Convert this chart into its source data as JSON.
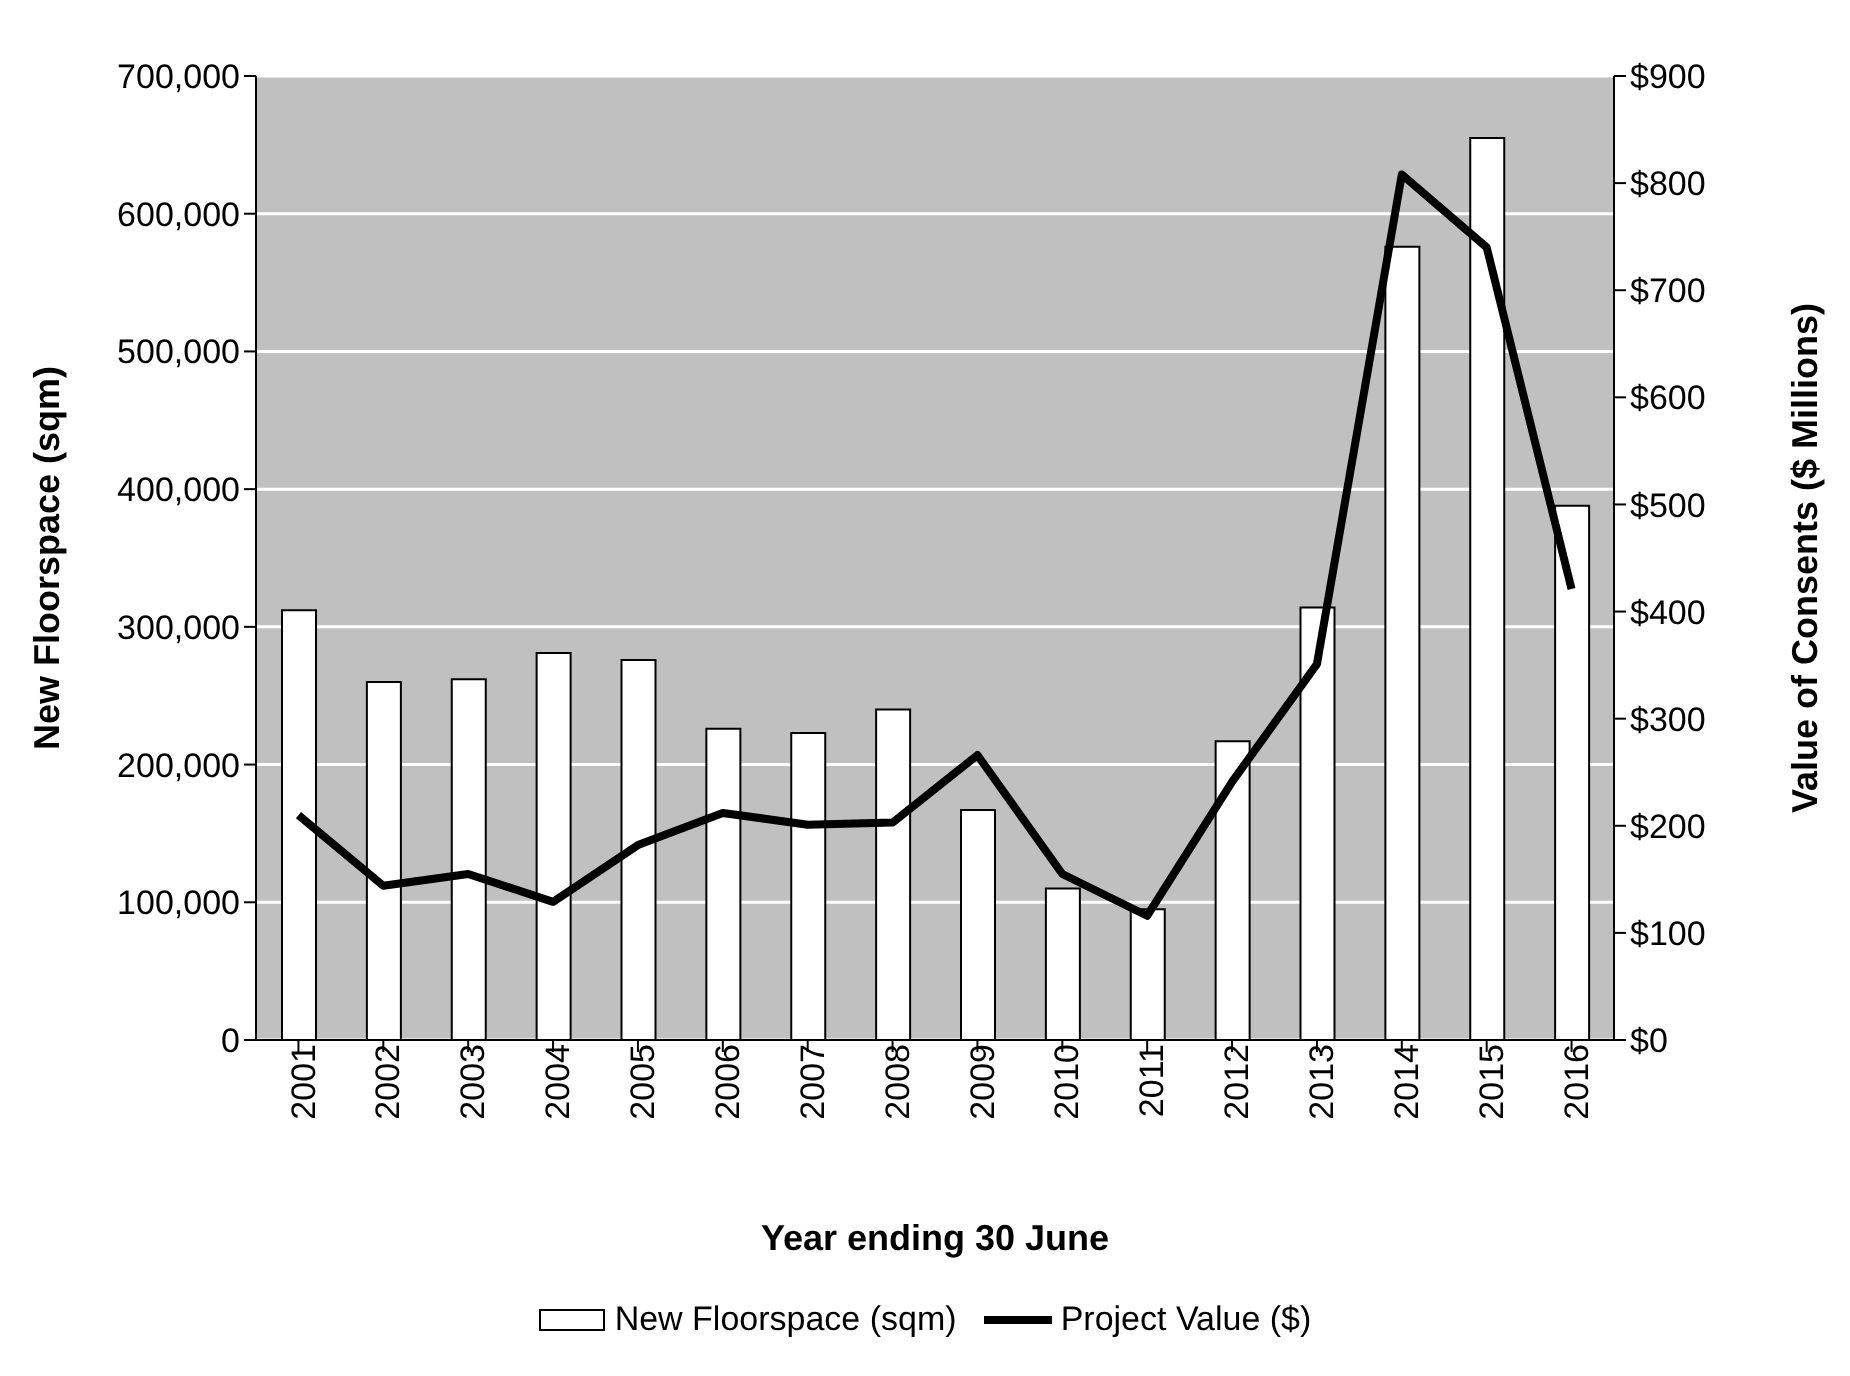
{
  "chart_data": {
    "type": "bar",
    "xlabel": "Year ending 30 June",
    "ylabel": "New Floorspace (sqm)",
    "y2label": "Value of Consents ($ Millions)",
    "categories": [
      "2001",
      "2002",
      "2003",
      "2004",
      "2005",
      "2006",
      "2007",
      "2008",
      "2009",
      "2010",
      "2011",
      "2012",
      "2013",
      "2014",
      "2015",
      "2016"
    ],
    "series": [
      {
        "name": "New Floorspace (sqm)",
        "color": "#ffffff",
        "values": [
          312000,
          260000,
          262000,
          281000,
          276000,
          226000,
          223000,
          240000,
          167000,
          110000,
          95000,
          217000,
          314000,
          576000,
          655000,
          388000
        ]
      },
      {
        "name": "Project Value ($)",
        "type": "line",
        "axis": "y2",
        "color": "#000000",
        "values": [
          210,
          144,
          155,
          129,
          182,
          212,
          201,
          203,
          266,
          155,
          116,
          241,
          351,
          808,
          740,
          421
        ]
      }
    ],
    "ylim": [
      0,
      700000
    ],
    "yticks": [
      {
        "value": 0,
        "label": "0"
      },
      {
        "value": 100000,
        "label": "100,000"
      },
      {
        "value": 200000,
        "label": "200,000"
      },
      {
        "value": 300000,
        "label": "300,000"
      },
      {
        "value": 400000,
        "label": "400,000"
      },
      {
        "value": 500000,
        "label": "500,000"
      },
      {
        "value": 600000,
        "label": "600,000"
      },
      {
        "value": 700000,
        "label": "700,000"
      }
    ],
    "y2lim": [
      0,
      900
    ],
    "y2ticks": [
      {
        "value": 0,
        "label": "$0"
      },
      {
        "value": 100,
        "label": "$100"
      },
      {
        "value": 200,
        "label": "$200"
      },
      {
        "value": 300,
        "label": "$300"
      },
      {
        "value": 400,
        "label": "$400"
      },
      {
        "value": 500,
        "label": "$500"
      },
      {
        "value": 600,
        "label": "$600"
      },
      {
        "value": 700,
        "label": "$700"
      },
      {
        "value": 800,
        "label": "$800"
      },
      {
        "value": 900,
        "label": "$900"
      }
    ],
    "grid": "y",
    "legend": "bottom",
    "marker": "none",
    "line_style": "solid"
  }
}
